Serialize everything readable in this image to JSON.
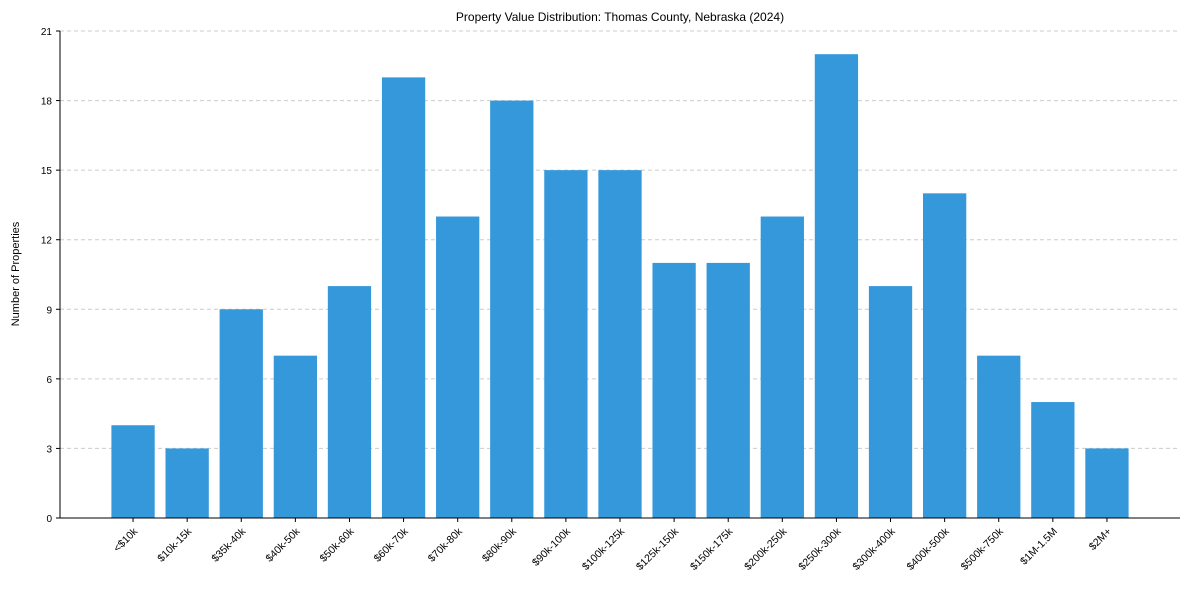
{
  "chart_data": {
    "type": "bar",
    "title": "Property Value Distribution: Thomas County, Nebraska (2024)",
    "xlabel": "",
    "ylabel": "Number of Properties",
    "categories": [
      "<$10k",
      "$10k-15k",
      "$35k-40k",
      "$40k-50k",
      "$50k-60k",
      "$60k-70k",
      "$70k-80k",
      "$80k-90k",
      "$90k-100k",
      "$100k-125k",
      "$125k-150k",
      "$150k-175k",
      "$200k-250k",
      "$250k-300k",
      "$300k-400k",
      "$400k-500k",
      "$500k-750k",
      "$1M-1.5M",
      "$2M+"
    ],
    "values": [
      4,
      3,
      9,
      7,
      10,
      19,
      13,
      18,
      15,
      15,
      11,
      11,
      13,
      20,
      10,
      14,
      7,
      5,
      3
    ],
    "ylim": [
      0,
      21
    ],
    "yticks": [
      0,
      3,
      6,
      9,
      12,
      15,
      18,
      21
    ],
    "grid": "y dashed",
    "bar_color": "#3498db"
  }
}
